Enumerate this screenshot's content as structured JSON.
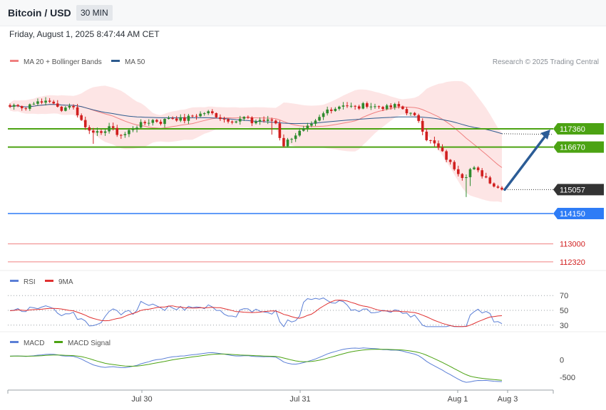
{
  "header": {
    "title": "Bitcoin / USD",
    "interval": "30 MIN",
    "datetime": "Friday, August 1, 2025 8:47:44 AM CET"
  },
  "credit": "Research © 2025 Trading Central",
  "colors": {
    "ma20": "#f08080",
    "band": "#fbd3d3",
    "ma50": "#2d5b8e",
    "up": "#2e8b2e",
    "down": "#d11f1f",
    "resistance": "#4ca313",
    "support": "#2e7cf6",
    "target": "#f08080",
    "price_tag": "#333333",
    "arrow": "#2b5c96",
    "rsi": "#5b7fd6",
    "rsi_ma": "#e03030",
    "macd": "#5b7fd6",
    "macd_signal": "#4ca313"
  },
  "chart_data": [
    {
      "type": "candlestick",
      "name": "price",
      "legend": [
        {
          "label": "MA 20 + Bollinger Bands",
          "color": "#f08080"
        },
        {
          "label": "MA 50",
          "color": "#2d5b8e"
        }
      ],
      "x_ticks": [
        "Jul 30",
        "Jul 31",
        "Aug 1",
        "Aug 3"
      ],
      "ylim": [
        112000,
        118300
      ],
      "last_price": 115057,
      "levels": [
        {
          "value": 117360,
          "kind": "resistance",
          "label": "117360"
        },
        {
          "value": 116670,
          "kind": "resistance",
          "label": "116670"
        },
        {
          "value": 115057,
          "kind": "price",
          "label": "115057"
        },
        {
          "value": 114150,
          "kind": "support",
          "label": "114150"
        },
        {
          "value": 113000,
          "kind": "target",
          "label": "113000"
        },
        {
          "value": 112320,
          "kind": "target",
          "label": "112320"
        }
      ],
      "projection": {
        "from": 115057,
        "to": 117360
      },
      "anchors": [
        118200,
        118300,
        118100,
        118400,
        118300,
        118500,
        118200,
        118100,
        118300,
        117900,
        117400,
        117300,
        117100,
        117500,
        117200,
        117100,
        117350,
        117500,
        117600,
        117700,
        117600,
        117800,
        117750,
        117700,
        117850,
        117900,
        118000,
        117900,
        117750,
        117700,
        117650,
        117800,
        117600,
        117700,
        117650,
        117700,
        116700,
        117000,
        117200,
        117350,
        117500,
        117800,
        118100,
        118150,
        118300,
        118200,
        118150,
        118300,
        118200,
        118200,
        118150,
        118250,
        118100,
        117900,
        117700,
        117000,
        116800,
        116500,
        116100,
        115800,
        115500,
        115900,
        115700,
        115500,
        115200,
        115057
      ]
    },
    {
      "type": "line",
      "name": "RSI",
      "legend": [
        {
          "label": "RSI",
          "color": "#5b7fd6"
        },
        {
          "label": "9MA",
          "color": "#e03030"
        }
      ],
      "ylim": [
        25,
        75
      ],
      "y_ticks": [
        70,
        50,
        30
      ],
      "last_value": 32
    },
    {
      "type": "line",
      "name": "MACD",
      "legend": [
        {
          "label": "MACD",
          "color": "#5b7fd6"
        },
        {
          "label": "MACD Signal",
          "color": "#4ca313"
        }
      ],
      "ylim": [
        -800,
        350
      ],
      "y_ticks": [
        0,
        -500
      ]
    }
  ]
}
